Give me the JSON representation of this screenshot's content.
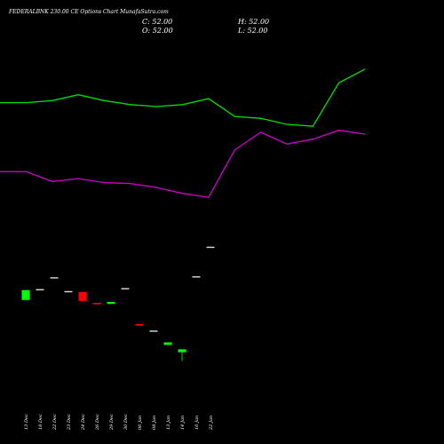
{
  "chart_data": {
    "type": "candlestick",
    "title": "FEDERALBNK 230.00  CE Options Chart MunafaSutra.com",
    "ohlc": {
      "close_label": "C: 52.00",
      "high_label": "H: 52.00",
      "open_label": "O: 52.00",
      "low_label": "L: 52.00"
    },
    "colors": {
      "background": "#000000",
      "up": "#00ff00",
      "down": "#ff0000",
      "neutral": "#dddddd",
      "upper_line": "#00e000",
      "lower_line": "#cc00cc",
      "text": "#ffffff"
    },
    "categories": [
      "13 Dec",
      "18 Dec",
      "22 Dec",
      "23 Dec",
      "24 Dec",
      "26 Dec",
      "29 Dec",
      "30 Dec",
      "06 Jan",
      "08 Jan",
      "13 Jan",
      "14 Jan",
      "16 Jan",
      "22 Jan"
    ],
    "candles": [
      {
        "o": 63,
        "h": 63,
        "l": 58,
        "c": 58,
        "dir": "up"
      },
      {
        "o": 63.5,
        "h": 63.5,
        "l": 63.5,
        "c": 63.5,
        "dir": "neutral"
      },
      {
        "o": 69.5,
        "h": 69.5,
        "l": 69.5,
        "c": 69.5,
        "dir": "neutral"
      },
      {
        "o": 62.5,
        "h": 62.5,
        "l": 62.5,
        "c": 62.5,
        "dir": "neutral"
      },
      {
        "o": 62,
        "h": 62,
        "l": 57.5,
        "c": 57.5,
        "dir": "down"
      },
      {
        "o": 56.5,
        "h": 56.5,
        "l": 55.8,
        "c": 55.8,
        "dir": "down"
      },
      {
        "o": 57,
        "h": 57,
        "l": 56,
        "c": 56,
        "dir": "up"
      },
      {
        "o": 64,
        "h": 64,
        "l": 64,
        "c": 64,
        "dir": "neutral"
      },
      {
        "o": 45.8,
        "h": 45.8,
        "l": 45,
        "c": 45,
        "dir": "down"
      },
      {
        "o": 42.5,
        "h": 42.5,
        "l": 42.5,
        "c": 42.5,
        "dir": "neutral"
      },
      {
        "o": 36.5,
        "h": 36.5,
        "l": 35.2,
        "c": 35.2,
        "dir": "up"
      },
      {
        "o": 33,
        "h": 33,
        "l": 27,
        "c": 31.5,
        "dir": "up"
      },
      {
        "o": 70,
        "h": 70,
        "l": 70,
        "c": 70,
        "dir": "neutral"
      },
      {
        "o": 85,
        "h": 85,
        "l": 85,
        "c": 85,
        "dir": "neutral"
      }
    ],
    "upper_line": [
      158,
      158,
      159,
      162,
      159,
      157,
      156,
      157,
      160,
      151,
      150,
      147,
      146,
      168,
      175
    ],
    "lower_line": [
      123,
      123,
      118,
      119.5,
      117.5,
      117,
      115,
      112,
      110,
      134,
      143,
      137,
      139.5,
      144,
      142
    ],
    "line_points": 15,
    "ylim": [
      12,
      192
    ],
    "grid": false
  }
}
